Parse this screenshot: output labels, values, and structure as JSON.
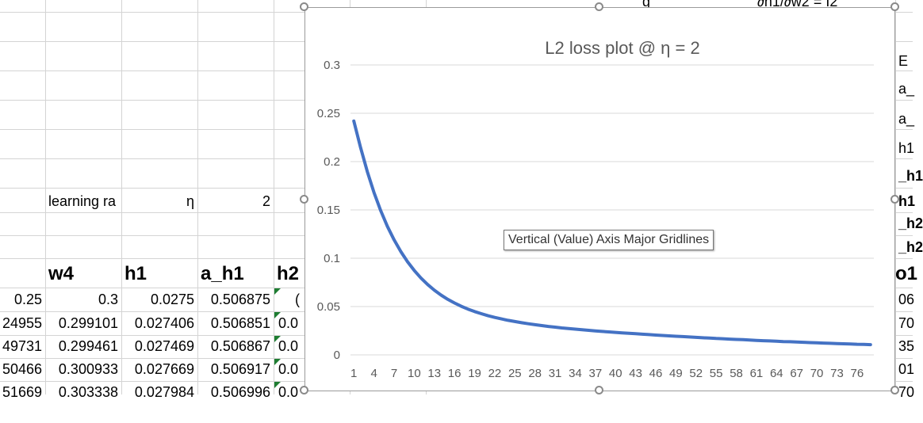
{
  "sheet": {
    "top_fragments": {
      "left": "g",
      "right": "∂h1/∂w2 = I2"
    },
    "learning_rate": {
      "label": "learning ra",
      "symbol": "η",
      "value": "2"
    },
    "headers": {
      "w4": "w4",
      "h1": "h1",
      "a_h1": "a_h1",
      "h2": "h2"
    },
    "rows": [
      [
        "0.25",
        "0.3",
        "0.0275",
        "0.506875",
        "("
      ],
      [
        "24955",
        "0.299101",
        "0.027406",
        "0.506851",
        "0.0"
      ],
      [
        "49731",
        "0.299461",
        "0.027469",
        "0.506867",
        "0.0"
      ],
      [
        "50466",
        "0.300933",
        "0.027669",
        "0.506917",
        "0.0"
      ],
      [
        "51669",
        "0.303338",
        "0.027984",
        "0.506996",
        "0.0"
      ]
    ],
    "right_column": [
      "E",
      "a_",
      "a_",
      "h1",
      "_h1",
      "h1",
      "_h2",
      "_h2",
      "o1",
      "06",
      "70",
      "35",
      "01",
      "70"
    ]
  },
  "tooltip": "Vertical (Value) Axis Major Gridlines",
  "colors": {
    "line": "#4472c4",
    "gridline": "#d9d9d9",
    "axis_text": "#595959",
    "title": "#595959"
  },
  "chart_data": {
    "type": "line",
    "title": "L2 loss plot @ η = 2",
    "xlabel": "",
    "ylabel": "",
    "ylim": [
      0,
      0.3
    ],
    "yticks": [
      "0",
      "0.05",
      "0.1",
      "0.15",
      "0.2",
      "0.25",
      "0.3"
    ],
    "xticks": [
      "1",
      "4",
      "7",
      "10",
      "13",
      "16",
      "19",
      "22",
      "25",
      "28",
      "31",
      "34",
      "37",
      "40",
      "43",
      "46",
      "49",
      "52",
      "55",
      "58",
      "61",
      "64",
      "67",
      "70",
      "73",
      "76"
    ],
    "grid": true,
    "legend": "none",
    "series": [
      {
        "values": [
          0.242,
          0.2146,
          0.1897,
          0.1681,
          0.1493,
          0.133,
          0.119,
          0.1069,
          0.0964,
          0.0874,
          0.0796,
          0.0728,
          0.0669,
          0.0619,
          0.0575,
          0.0537,
          0.0503,
          0.0474,
          0.0448,
          0.0426,
          0.0405,
          0.0388,
          0.0372,
          0.0357,
          0.0345,
          0.0333,
          0.0322,
          0.0312,
          0.0303,
          0.0294,
          0.0287,
          0.0279,
          0.0272,
          0.0266,
          0.026,
          0.0254,
          0.0248,
          0.0243,
          0.0238,
          0.0233,
          0.0228,
          0.0223,
          0.0219,
          0.0214,
          0.021,
          0.0205,
          0.0201,
          0.0197,
          0.0193,
          0.0189,
          0.0185,
          0.0181,
          0.0177,
          0.0174,
          0.017,
          0.0167,
          0.0163,
          0.016,
          0.0157,
          0.0153,
          0.015,
          0.0147,
          0.0144,
          0.0141,
          0.0138,
          0.0136,
          0.0133,
          0.013,
          0.0127,
          0.0125,
          0.0122,
          0.012,
          0.0117,
          0.0115,
          0.0113,
          0.011,
          0.0108,
          0.0106
        ]
      }
    ]
  }
}
